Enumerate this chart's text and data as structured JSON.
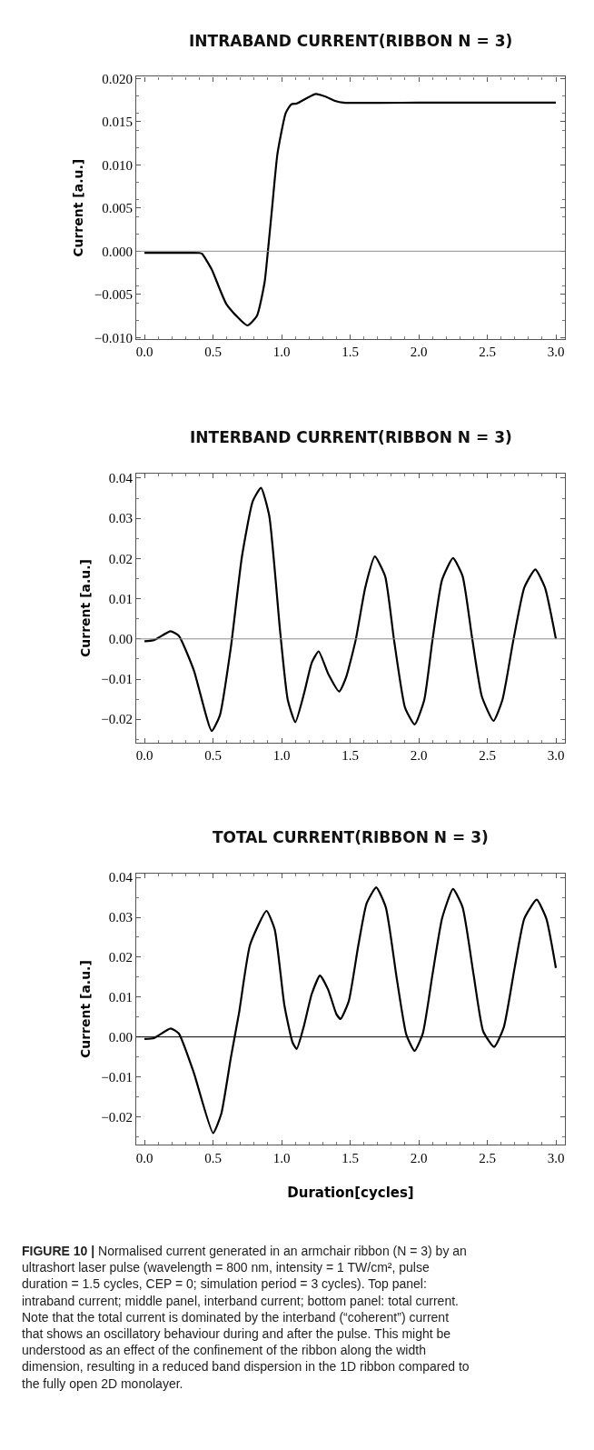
{
  "chart_data": [
    {
      "type": "line",
      "title": "INTRABAND CURRENT(RIBBON N = 3)",
      "ylabel": "Current [a.u.]",
      "xlim": [
        -0.06,
        3.066
      ],
      "ylim": [
        -0.0102,
        0.0202
      ],
      "xticks": [
        {
          "value": 0,
          "label": "0.0"
        },
        {
          "value": 0.5,
          "label": "0.5"
        },
        {
          "value": 1,
          "label": "1.0"
        },
        {
          "value": 1.5,
          "label": "1.5"
        },
        {
          "value": 2,
          "label": "2.0"
        },
        {
          "value": 2.5,
          "label": "2.5"
        },
        {
          "value": 3,
          "label": "3.0"
        }
      ],
      "yticks": [
        {
          "value": -0.01,
          "label": "−0.010"
        },
        {
          "value": -0.005,
          "label": "−0.005"
        },
        {
          "value": 0,
          "label": "0.000"
        },
        0.005,
        {
          "value": 0.01,
          "label": "0.010"
        },
        0.015,
        {
          "value": 0.02,
          "label": "0.020"
        }
      ],
      "marker": "none",
      "line_style": "solid",
      "ref_lines": [
        {
          "axis": "y",
          "value": 0,
          "color": "#8c8c8c"
        }
      ],
      "series": [
        {
          "color": "#000000",
          "x": [
            0,
            0.2,
            0.4,
            0.42,
            0.49,
            0.6,
            0.75,
            0.82,
            0.876,
            0.9,
            0.93,
            0.97,
            1.03,
            1.07,
            1.11,
            1.18,
            1.25,
            1.32,
            1.39,
            1.45,
            2.0,
            2.5,
            3.0
          ],
          "values": [
            -0.0002,
            -0.0002,
            -0.0002,
            -0.0003,
            -0.0021,
            -0.0062,
            -0.0086,
            -0.0075,
            -0.0036,
            0,
            0.0049,
            0.0113,
            0.016,
            0.017,
            0.0171,
            0.0177,
            0.0182,
            0.0179,
            0.0174,
            0.0172,
            0.0172,
            0.0172,
            0.0172
          ]
        }
      ]
    },
    {
      "type": "line",
      "title": "INTERBAND CURRENT(RIBBON N = 3)",
      "ylabel": "Current [a.u.]",
      "xlim": [
        -0.06,
        3.066
      ],
      "ylim": [
        -0.0258,
        0.0411
      ],
      "xticks": [
        {
          "value": 0,
          "label": "0.0"
        },
        {
          "value": 0.5,
          "label": "0.5"
        },
        {
          "value": 1,
          "label": "1.0"
        },
        {
          "value": 1.5,
          "label": "1.5"
        },
        {
          "value": 2,
          "label": "2.0"
        },
        {
          "value": 2.5,
          "label": "2.5"
        },
        {
          "value": 3,
          "label": "3.0"
        }
      ],
      "yticks": [
        {
          "value": -0.02,
          "label": "−0.02"
        },
        {
          "value": -0.01,
          "label": "−0.01"
        },
        {
          "value": 0,
          "label": "0.00"
        },
        0.01,
        {
          "value": 0.02,
          "label": "0.02"
        },
        0.03,
        0.04
      ],
      "marker": "none",
      "line_style": "solid",
      "ref_lines": [
        {
          "axis": "y",
          "value": 0,
          "color": "#8c8c8c"
        }
      ],
      "series": [
        {
          "color": "#000000",
          "x": [
            0,
            0.07,
            0.19,
            0.25,
            0.36,
            0.49,
            0.55,
            0.63,
            0.71,
            0.79,
            0.85,
            0.91,
            0.99,
            1.045,
            1.1,
            1.165,
            1.22,
            1.27,
            1.34,
            1.42,
            1.47,
            1.54,
            1.61,
            1.68,
            1.755,
            1.82,
            1.9,
            1.97,
            2.04,
            2.1,
            2.17,
            2.25,
            2.32,
            2.39,
            2.46,
            2.545,
            2.61,
            2.69,
            2.77,
            2.85,
            2.92,
            3.0
          ],
          "values": [
            -0.0006,
            -0.0003,
            0.0019,
            0.0008,
            -0.0078,
            -0.0229,
            -0.019,
            -0.0021,
            0.0203,
            0.0343,
            0.0376,
            0.0306,
            0.0016,
            -0.0152,
            -0.0207,
            -0.0134,
            -0.0059,
            -0.0031,
            -0.0087,
            -0.0131,
            -0.0096,
            -0.0003,
            0.0128,
            0.0205,
            0.0156,
            -0.0003,
            -0.0171,
            -0.0213,
            -0.0152,
            -0.0003,
            0.0147,
            0.0201,
            0.0156,
            0,
            -0.0143,
            -0.0204,
            -0.0152,
            -0.0003,
            0.0128,
            0.0173,
            0.0128,
            0
          ]
        }
      ]
    },
    {
      "type": "line",
      "title": "TOTAL CURRENT(RIBBON N = 3)",
      "xlabel": "Duration[cycles]",
      "ylabel": "Current [a.u.]",
      "xlim": [
        -0.06,
        3.066
      ],
      "ylim": [
        -0.0271,
        0.041
      ],
      "xticks": [
        {
          "value": 0,
          "label": "0.0"
        },
        {
          "value": 0.5,
          "label": "0.5"
        },
        {
          "value": 1,
          "label": "1.0"
        },
        {
          "value": 1.5,
          "label": "1.5"
        },
        {
          "value": 2,
          "label": "2.0"
        },
        {
          "value": 2.5,
          "label": "2.5"
        },
        {
          "value": 3,
          "label": "3.0"
        }
      ],
      "yticks": [
        {
          "value": -0.02,
          "label": "−0.02"
        },
        {
          "value": -0.01,
          "label": "−0.01"
        },
        {
          "value": 0,
          "label": "0.00"
        },
        0.01,
        {
          "value": 0.02,
          "label": "0.02"
        },
        0.03,
        0.04
      ],
      "marker": "none",
      "line_style": "solid",
      "ref_lines": [
        {
          "axis": "y",
          "value": 0,
          "color": "#000000"
        }
      ],
      "annotations": [
        "FIGURE 10 | Normalised current generated in an armchair ribbon (N = 3) by an ultrashort laser pulse (wavelength = 800 nm, intensity = 1 TW/cm², pulse duration = 1.5 cycles, CEP = 0; simulation period = 3 cycles). Top panel: intraband current; middle panel, interband current; bottom panel: total current. Note that the total current is dominated by the interband (“coherent”) current that shows an oscillatory behaviour during and after the pulse. This might be understood as an effect of the confinement of the ribbon along the width dimension, resulting in a reduced band dispersion in the 1D ribbon compared to the fully open 2D monolayer."
      ],
      "series": [
        {
          "color": "#000000",
          "x": [
            0,
            0.07,
            0.19,
            0.25,
            0.36,
            0.5,
            0.56,
            0.63,
            0.69,
            0.77,
            0.89,
            0.95,
            1.02,
            1.08,
            1.11,
            1.16,
            1.22,
            1.28,
            1.34,
            1.4,
            1.43,
            1.49,
            1.56,
            1.62,
            1.69,
            1.76,
            1.84,
            1.91,
            1.97,
            2.03,
            2.1,
            2.17,
            2.25,
            2.32,
            2.4,
            2.47,
            2.55,
            2.62,
            2.7,
            2.77,
            2.86,
            2.93,
            3.0
          ],
          "values": [
            -0.0005,
            -0.0003,
            0.0021,
            0.0009,
            -0.009,
            -0.0241,
            -0.0193,
            -0.0052,
            0.0061,
            0.0231,
            0.0316,
            0.0269,
            0.008,
            -0.0014,
            -0.003,
            0.0024,
            0.0108,
            0.0154,
            0.0118,
            0.0057,
            0.0045,
            0.009,
            0.0231,
            0.0335,
            0.0375,
            0.0325,
            0.0146,
            0.0005,
            -0.0035,
            0.0009,
            0.0156,
            0.0297,
            0.0371,
            0.0325,
            0.0156,
            0.0014,
            -0.0025,
            0.0024,
            0.0175,
            0.0297,
            0.0344,
            0.0297,
            0.0173
          ]
        }
      ]
    }
  ]
}
